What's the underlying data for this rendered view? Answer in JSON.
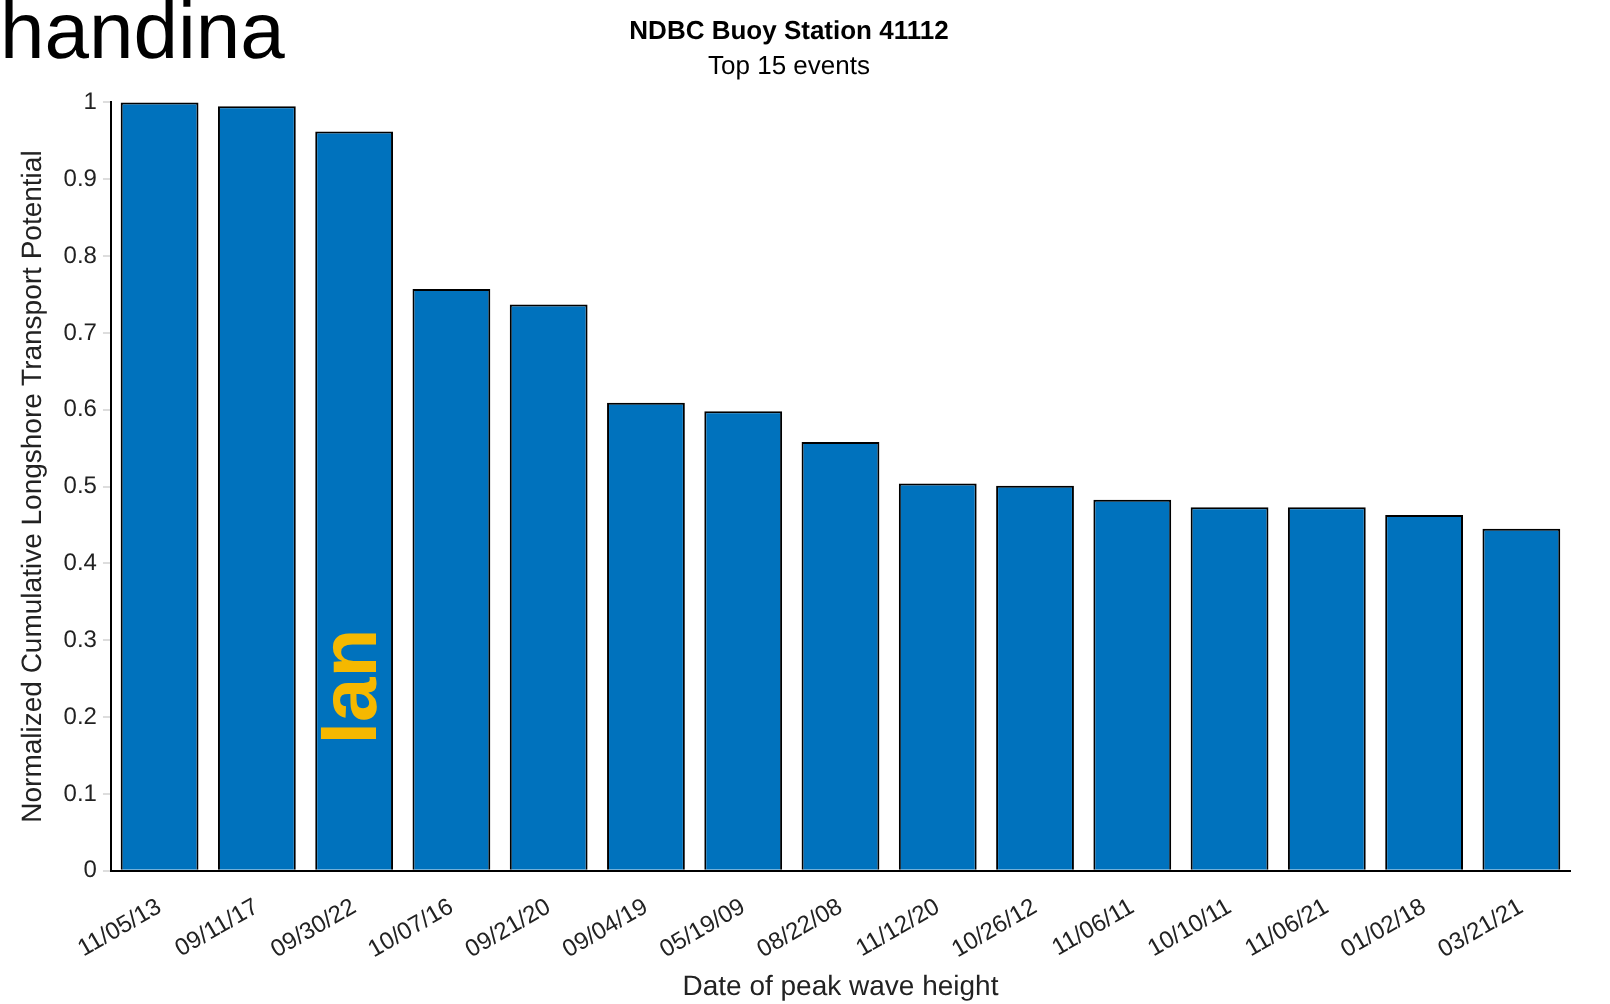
{
  "chart_data": {
    "type": "bar",
    "title": "NDBC Buoy Station 41112",
    "subtitle": "Top 15 events",
    "xlabel": "Date of peak wave height",
    "ylabel": "Normalized Cumulative Longshore Transport Potential",
    "categories": [
      "11/05/13",
      "09/11/17",
      "09/30/22",
      "10/07/16",
      "09/21/20",
      "09/04/19",
      "05/19/09",
      "08/22/08",
      "11/12/20",
      "10/26/12",
      "11/06/11",
      "10/10/11",
      "11/06/21",
      "01/02/18",
      "03/21/21"
    ],
    "values": [
      1.0,
      0.995,
      0.962,
      0.757,
      0.737,
      0.609,
      0.598,
      0.558,
      0.504,
      0.501,
      0.483,
      0.473,
      0.473,
      0.463,
      0.445
    ],
    "color": "#0072bd",
    "ylim": [
      0,
      1
    ],
    "yticks": [
      0,
      0.1,
      0.2,
      0.3,
      0.4,
      0.5,
      0.6,
      0.7,
      0.8,
      0.9,
      1
    ],
    "grid": false,
    "annotations": [
      "handina",
      {
        "text": "Ian",
        "x": "09/30/22",
        "y": 0.24
      }
    ]
  }
}
